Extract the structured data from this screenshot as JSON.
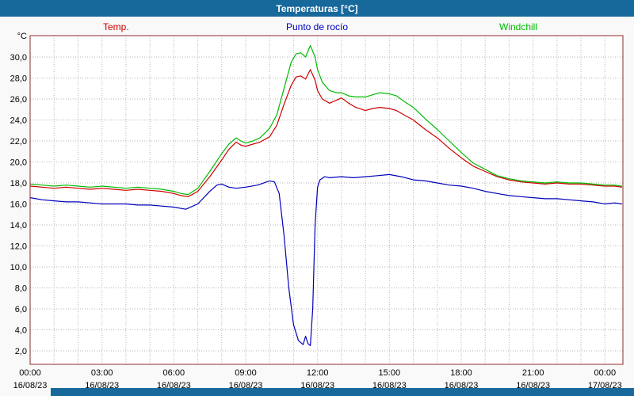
{
  "colors": {
    "titlebar": "#17689b",
    "plot_border": "#8b2c2c",
    "gridline": "#b5b5b5",
    "plot_background": "#ffffff"
  },
  "chart_data": {
    "type": "line",
    "title": "Temperaturas [°C]",
    "y_unit": "°C",
    "xlim": [
      0,
      24.75
    ],
    "ylim": [
      0.72,
      32.04
    ],
    "grid": "dotted, vertical every hour, horizontal every 2 °C",
    "legend_position": "top",
    "y_ticks": [
      {
        "v": 30,
        "label": "30,0"
      },
      {
        "v": 28,
        "label": "28,0"
      },
      {
        "v": 26,
        "label": "26,0"
      },
      {
        "v": 24,
        "label": "24,0"
      },
      {
        "v": 22,
        "label": "22,0"
      },
      {
        "v": 20,
        "label": "20,0"
      },
      {
        "v": 18,
        "label": "18,0"
      },
      {
        "v": 16,
        "label": "16,0"
      },
      {
        "v": 14,
        "label": "14,0"
      },
      {
        "v": 12,
        "label": "12,0"
      },
      {
        "v": 10,
        "label": "10,0"
      },
      {
        "v": 8,
        "label": "8,0"
      },
      {
        "v": 6,
        "label": "6,0"
      },
      {
        "v": 4,
        "label": "4,0"
      },
      {
        "v": 2,
        "label": "2,0"
      }
    ],
    "x_ticks": [
      {
        "hour": 0,
        "time": "00:00",
        "date": "16/08/23"
      },
      {
        "hour": 3,
        "time": "03:00",
        "date": "16/08/23"
      },
      {
        "hour": 6,
        "time": "06:00",
        "date": "16/08/23"
      },
      {
        "hour": 9,
        "time": "09:00",
        "date": "16/08/23"
      },
      {
        "hour": 12,
        "time": "12:00",
        "date": "16/08/23"
      },
      {
        "hour": 15,
        "time": "15:00",
        "date": "16/08/23"
      },
      {
        "hour": 18,
        "time": "18:00",
        "date": "16/08/23"
      },
      {
        "hour": 21,
        "time": "21:00",
        "date": "16/08/23"
      },
      {
        "hour": 24,
        "time": "00:00",
        "date": "17/08/23"
      }
    ],
    "series": [
      {
        "name": "Temp.",
        "color": "#cc0000",
        "points": [
          [
            0,
            17.7
          ],
          [
            0.5,
            17.6
          ],
          [
            1,
            17.5
          ],
          [
            1.5,
            17.6
          ],
          [
            2,
            17.5
          ],
          [
            2.5,
            17.4
          ],
          [
            3,
            17.5
          ],
          [
            3.5,
            17.4
          ],
          [
            4,
            17.3
          ],
          [
            4.5,
            17.4
          ],
          [
            5,
            17.3
          ],
          [
            5.5,
            17.2
          ],
          [
            6,
            17.0
          ],
          [
            6.3,
            16.8
          ],
          [
            6.6,
            16.7
          ],
          [
            7,
            17.2
          ],
          [
            7.5,
            18.6
          ],
          [
            8,
            20.2
          ],
          [
            8.3,
            21.2
          ],
          [
            8.6,
            21.9
          ],
          [
            8.8,
            21.6
          ],
          [
            9,
            21.5
          ],
          [
            9.3,
            21.7
          ],
          [
            9.6,
            21.9
          ],
          [
            10,
            22.4
          ],
          [
            10.3,
            23.5
          ],
          [
            10.6,
            25.5
          ],
          [
            10.9,
            27.3
          ],
          [
            11.1,
            28.1
          ],
          [
            11.3,
            28.2
          ],
          [
            11.5,
            27.9
          ],
          [
            11.7,
            28.8
          ],
          [
            11.9,
            27.8
          ],
          [
            12,
            26.8
          ],
          [
            12.2,
            26.0
          ],
          [
            12.5,
            25.6
          ],
          [
            12.8,
            25.9
          ],
          [
            13,
            26.1
          ],
          [
            13.3,
            25.6
          ],
          [
            13.6,
            25.2
          ],
          [
            14,
            24.9
          ],
          [
            14.3,
            25.1
          ],
          [
            14.6,
            25.2
          ],
          [
            15,
            25.1
          ],
          [
            15.3,
            24.9
          ],
          [
            15.6,
            24.5
          ],
          [
            16,
            24.0
          ],
          [
            16.5,
            23.1
          ],
          [
            17,
            22.3
          ],
          [
            17.5,
            21.3
          ],
          [
            18,
            20.4
          ],
          [
            18.5,
            19.6
          ],
          [
            19,
            19.1
          ],
          [
            19.5,
            18.6
          ],
          [
            20,
            18.3
          ],
          [
            20.5,
            18.1
          ],
          [
            21,
            18.0
          ],
          [
            21.5,
            17.9
          ],
          [
            22,
            18.0
          ],
          [
            22.5,
            17.9
          ],
          [
            23,
            17.9
          ],
          [
            23.5,
            17.8
          ],
          [
            24,
            17.7
          ],
          [
            24.4,
            17.7
          ],
          [
            24.7,
            17.6
          ]
        ]
      },
      {
        "name": "Punto de rocío",
        "color": "#0000bb",
        "points": [
          [
            0,
            16.6
          ],
          [
            0.5,
            16.4
          ],
          [
            1,
            16.3
          ],
          [
            1.5,
            16.2
          ],
          [
            2,
            16.2
          ],
          [
            2.5,
            16.1
          ],
          [
            3,
            16.0
          ],
          [
            3.5,
            16.0
          ],
          [
            4,
            16.0
          ],
          [
            4.5,
            15.9
          ],
          [
            5,
            15.9
          ],
          [
            5.5,
            15.8
          ],
          [
            6,
            15.7
          ],
          [
            6.5,
            15.5
          ],
          [
            7,
            16.0
          ],
          [
            7.5,
            17.2
          ],
          [
            7.8,
            17.8
          ],
          [
            8,
            17.9
          ],
          [
            8.3,
            17.6
          ],
          [
            8.6,
            17.5
          ],
          [
            9,
            17.6
          ],
          [
            9.5,
            17.8
          ],
          [
            10,
            18.2
          ],
          [
            10.2,
            18.1
          ],
          [
            10.4,
            17.0
          ],
          [
            10.6,
            13.0
          ],
          [
            10.8,
            8.0
          ],
          [
            11,
            4.5
          ],
          [
            11.2,
            3.0
          ],
          [
            11.4,
            2.6
          ],
          [
            11.5,
            3.4
          ],
          [
            11.6,
            2.7
          ],
          [
            11.7,
            2.5
          ],
          [
            11.8,
            6.0
          ],
          [
            11.9,
            14.0
          ],
          [
            12,
            17.6
          ],
          [
            12.1,
            18.3
          ],
          [
            12.3,
            18.6
          ],
          [
            12.5,
            18.5
          ],
          [
            13,
            18.6
          ],
          [
            13.5,
            18.5
          ],
          [
            14,
            18.6
          ],
          [
            14.5,
            18.7
          ],
          [
            15,
            18.8
          ],
          [
            15.5,
            18.6
          ],
          [
            16,
            18.3
          ],
          [
            16.5,
            18.2
          ],
          [
            17,
            18.0
          ],
          [
            17.5,
            17.8
          ],
          [
            18,
            17.7
          ],
          [
            18.5,
            17.5
          ],
          [
            19,
            17.2
          ],
          [
            19.5,
            17.0
          ],
          [
            20,
            16.8
          ],
          [
            20.5,
            16.7
          ],
          [
            21,
            16.6
          ],
          [
            21.5,
            16.5
          ],
          [
            22,
            16.5
          ],
          [
            22.5,
            16.4
          ],
          [
            23,
            16.3
          ],
          [
            23.5,
            16.2
          ],
          [
            24,
            16.0
          ],
          [
            24.4,
            16.1
          ],
          [
            24.7,
            16.0
          ]
        ]
      },
      {
        "name": "Windchill",
        "color": "#00bb00",
        "points": [
          [
            0,
            17.9
          ],
          [
            0.5,
            17.8
          ],
          [
            1,
            17.7
          ],
          [
            1.5,
            17.8
          ],
          [
            2,
            17.7
          ],
          [
            2.5,
            17.6
          ],
          [
            3,
            17.7
          ],
          [
            3.5,
            17.6
          ],
          [
            4,
            17.5
          ],
          [
            4.5,
            17.6
          ],
          [
            5,
            17.5
          ],
          [
            5.5,
            17.4
          ],
          [
            6,
            17.2
          ],
          [
            6.3,
            17.0
          ],
          [
            6.6,
            16.9
          ],
          [
            7,
            17.5
          ],
          [
            7.5,
            19.1
          ],
          [
            8,
            20.8
          ],
          [
            8.3,
            21.7
          ],
          [
            8.6,
            22.3
          ],
          [
            8.8,
            22.0
          ],
          [
            9,
            21.8
          ],
          [
            9.3,
            22.0
          ],
          [
            9.6,
            22.3
          ],
          [
            10,
            23.2
          ],
          [
            10.3,
            24.5
          ],
          [
            10.6,
            27.0
          ],
          [
            10.9,
            29.5
          ],
          [
            11.1,
            30.3
          ],
          [
            11.3,
            30.4
          ],
          [
            11.5,
            30.0
          ],
          [
            11.7,
            31.1
          ],
          [
            11.9,
            30.0
          ],
          [
            12,
            28.8
          ],
          [
            12.2,
            27.6
          ],
          [
            12.5,
            26.8
          ],
          [
            12.8,
            26.6
          ],
          [
            13,
            26.6
          ],
          [
            13.3,
            26.3
          ],
          [
            13.6,
            26.2
          ],
          [
            14,
            26.2
          ],
          [
            14.3,
            26.4
          ],
          [
            14.6,
            26.6
          ],
          [
            15,
            26.5
          ],
          [
            15.3,
            26.3
          ],
          [
            15.6,
            25.8
          ],
          [
            16,
            25.2
          ],
          [
            16.5,
            24.1
          ],
          [
            17,
            23.1
          ],
          [
            17.5,
            22.0
          ],
          [
            18,
            20.9
          ],
          [
            18.5,
            19.9
          ],
          [
            19,
            19.3
          ],
          [
            19.5,
            18.7
          ],
          [
            20,
            18.4
          ],
          [
            20.5,
            18.2
          ],
          [
            21,
            18.1
          ],
          [
            21.5,
            18.0
          ],
          [
            22,
            18.1
          ],
          [
            22.5,
            18.0
          ],
          [
            23,
            18.0
          ],
          [
            23.5,
            17.9
          ],
          [
            24,
            17.8
          ],
          [
            24.4,
            17.8
          ],
          [
            24.7,
            17.7
          ]
        ]
      }
    ]
  }
}
